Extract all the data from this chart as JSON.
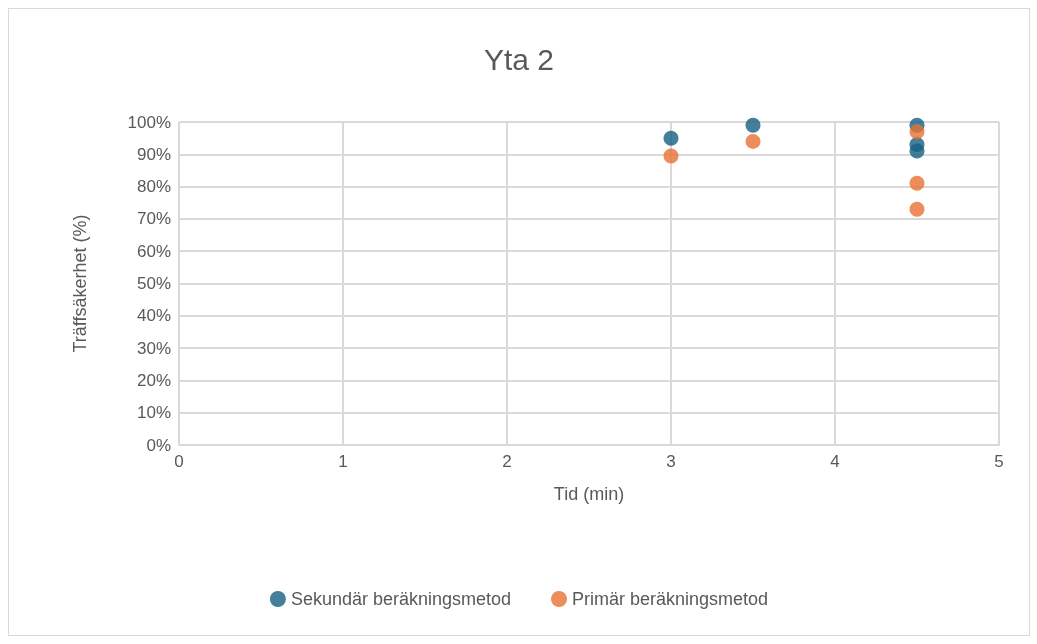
{
  "chart_data": {
    "type": "scatter",
    "title": "Yta 2",
    "xlabel": "Tid (min)",
    "ylabel": "Träffsäkerhet (%)",
    "xlim": [
      0,
      5
    ],
    "xticks": [
      0,
      1,
      2,
      3,
      4,
      5
    ],
    "ylim": [
      0,
      100
    ],
    "yticks": [
      {
        "value": 0,
        "label": "0%"
      },
      {
        "value": 10,
        "label": "10%"
      },
      {
        "value": 20,
        "label": "20%"
      },
      {
        "value": 30,
        "label": "30%"
      },
      {
        "value": 40,
        "label": "40%"
      },
      {
        "value": 50,
        "label": "50%"
      },
      {
        "value": 60,
        "label": "60%"
      },
      {
        "value": 70,
        "label": "70%"
      },
      {
        "value": 80,
        "label": "80%"
      },
      {
        "value": 90,
        "label": "90%"
      },
      {
        "value": 100,
        "label": "100%"
      }
    ],
    "grid": true,
    "legend": "bottom",
    "marker": "circle",
    "series": [
      {
        "name": "Sekundär beräkningsmetod",
        "color": "#156082",
        "x": [
          3,
          3.5,
          4.5,
          4.5,
          4.5
        ],
        "values": [
          95,
          99,
          99,
          93,
          91
        ]
      },
      {
        "name": "Primär beräkningsmetod",
        "color": "#e97132",
        "x": [
          3,
          3.5,
          4.5,
          4.5,
          4.5
        ],
        "values": [
          89.5,
          94,
          97,
          81,
          73
        ]
      }
    ]
  }
}
